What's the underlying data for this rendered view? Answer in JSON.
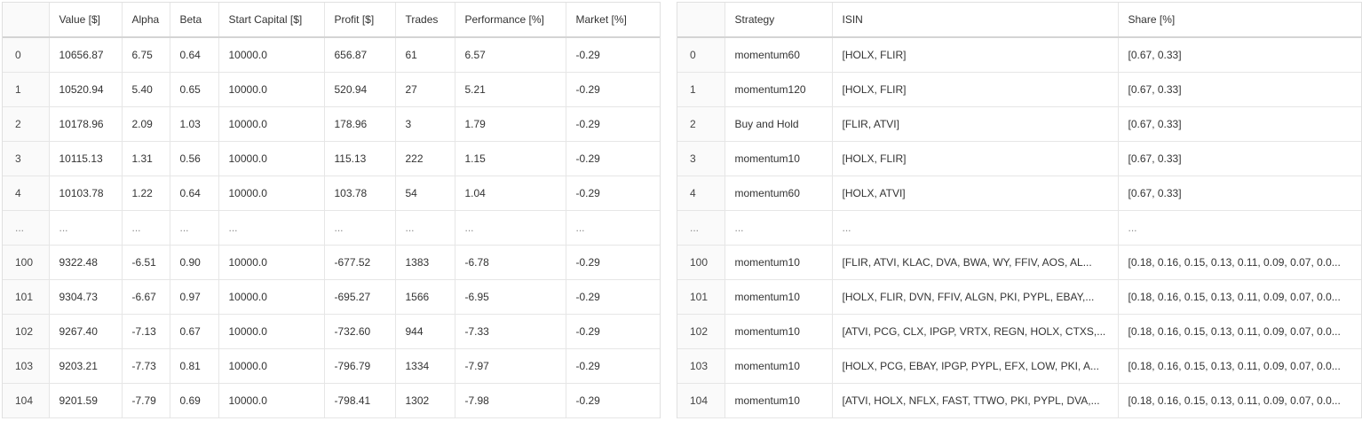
{
  "results_table": {
    "columns": [
      "",
      "Value [$]",
      "Alpha",
      "Beta",
      "Start Capital [$]",
      "Profit [$]",
      "Trades",
      "Performance [%]",
      "Market [%]"
    ],
    "rows": [
      [
        "0",
        "10656.87",
        "6.75",
        "0.64",
        "10000.0",
        "656.87",
        "61",
        "6.57",
        "-0.29"
      ],
      [
        "1",
        "10520.94",
        "5.40",
        "0.65",
        "10000.0",
        "520.94",
        "27",
        "5.21",
        "-0.29"
      ],
      [
        "2",
        "10178.96",
        "2.09",
        "1.03",
        "10000.0",
        "178.96",
        "3",
        "1.79",
        "-0.29"
      ],
      [
        "3",
        "10115.13",
        "1.31",
        "0.56",
        "10000.0",
        "115.13",
        "222",
        "1.15",
        "-0.29"
      ],
      [
        "4",
        "10103.78",
        "1.22",
        "0.64",
        "10000.0",
        "103.78",
        "54",
        "1.04",
        "-0.29"
      ],
      [
        "...",
        "...",
        "...",
        "...",
        "...",
        "...",
        "...",
        "...",
        "..."
      ],
      [
        "100",
        "9322.48",
        "-6.51",
        "0.90",
        "10000.0",
        "-677.52",
        "1383",
        "-6.78",
        "-0.29"
      ],
      [
        "101",
        "9304.73",
        "-6.67",
        "0.97",
        "10000.0",
        "-695.27",
        "1566",
        "-6.95",
        "-0.29"
      ],
      [
        "102",
        "9267.40",
        "-7.13",
        "0.67",
        "10000.0",
        "-732.60",
        "944",
        "-7.33",
        "-0.29"
      ],
      [
        "103",
        "9203.21",
        "-7.73",
        "0.81",
        "10000.0",
        "-796.79",
        "1334",
        "-7.97",
        "-0.29"
      ],
      [
        "104",
        "9201.59",
        "-7.79",
        "0.69",
        "10000.0",
        "-798.41",
        "1302",
        "-7.98",
        "-0.29"
      ]
    ]
  },
  "strategy_table": {
    "columns": [
      "",
      "Strategy",
      "ISIN",
      "Share [%]"
    ],
    "rows": [
      [
        "0",
        "momentum60",
        "[HOLX, FLIR]",
        "[0.67, 0.33]"
      ],
      [
        "1",
        "momentum120",
        "[HOLX, FLIR]",
        "[0.67, 0.33]"
      ],
      [
        "2",
        "Buy and Hold",
        "[FLIR, ATVI]",
        "[0.67, 0.33]"
      ],
      [
        "3",
        "momentum10",
        "[HOLX, FLIR]",
        "[0.67, 0.33]"
      ],
      [
        "4",
        "momentum60",
        "[HOLX, ATVI]",
        "[0.67, 0.33]"
      ],
      [
        "...",
        "...",
        "...",
        "..."
      ],
      [
        "100",
        "momentum10",
        "[FLIR, ATVI, KLAC, DVA, BWA, WY, FFIV, AOS, AL...",
        "[0.18, 0.16, 0.15, 0.13, 0.11, 0.09, 0.07, 0.0..."
      ],
      [
        "101",
        "momentum10",
        "[HOLX, FLIR, DVN, FFIV, ALGN, PKI, PYPL, EBAY,...",
        "[0.18, 0.16, 0.15, 0.13, 0.11, 0.09, 0.07, 0.0..."
      ],
      [
        "102",
        "momentum10",
        "[ATVI, PCG, CLX, IPGP, VRTX, REGN, HOLX, CTXS,...",
        "[0.18, 0.16, 0.15, 0.13, 0.11, 0.09, 0.07, 0.0..."
      ],
      [
        "103",
        "momentum10",
        "[HOLX, PCG, EBAY, IPGP, PYPL, EFX, LOW, PKI, A...",
        "[0.18, 0.16, 0.15, 0.13, 0.11, 0.09, 0.07, 0.0..."
      ],
      [
        "104",
        "momentum10",
        "[ATVI, HOLX, NFLX, FAST, TTWO, PKI, PYPL, DVA,...",
        "[0.18, 0.16, 0.15, 0.13, 0.11, 0.09, 0.07, 0.0..."
      ]
    ]
  }
}
